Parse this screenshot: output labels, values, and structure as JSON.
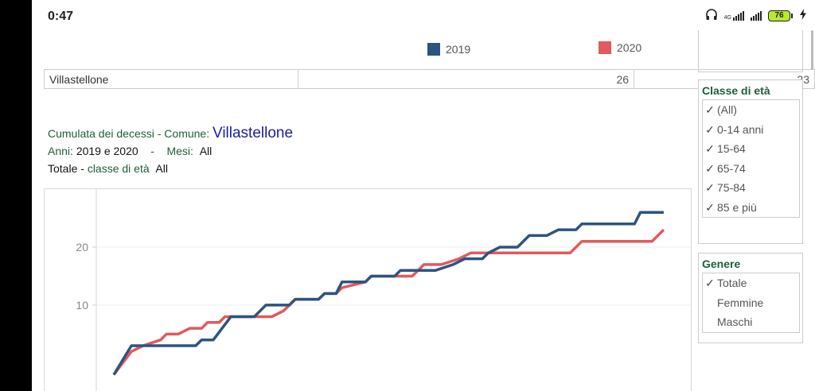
{
  "status_bar": {
    "time": "0:47",
    "network": "4G",
    "battery": "76"
  },
  "legend": [
    {
      "label": "2019",
      "color": "#2d5480"
    },
    {
      "label": "2020",
      "color": "#e05a5e"
    }
  ],
  "summary_table": {
    "rows": [
      {
        "comune": "Villastellone",
        "v2019": "26",
        "v2020": "23"
      }
    ]
  },
  "chart_header": {
    "line1_label": "Cumulata dei decessi -",
    "comune_label": "Comune:",
    "comune_value": "Villastellone",
    "anni_label": "Anni:",
    "anni_value": "2019 e 2020",
    "separator": "-",
    "mesi_label": "Mesi:",
    "mesi_value": "All",
    "totale_label": "Totale",
    "dash": "-",
    "classe_label": "classe di età",
    "classe_value": "All"
  },
  "filters": {
    "age": {
      "title": "Classe di età",
      "check": "✓",
      "items": [
        "(All)",
        "0-14 anni",
        "15-64",
        "65-74",
        "75-84",
        "85 e più"
      ]
    },
    "gender": {
      "title": "Genere",
      "check": "✓",
      "items": [
        "Totale",
        "Femmine",
        "Maschi"
      ],
      "selected": "Totale"
    }
  },
  "chart_data": {
    "type": "line",
    "title": "",
    "xlabel": "",
    "ylabel": "",
    "x_domain": [
      0,
      100
    ],
    "ylim": [
      -7,
      30
    ],
    "y_ticks": [
      10,
      20
    ],
    "grid": true,
    "series": [
      {
        "name": "2019",
        "color": "#2d5480",
        "step": true,
        "points": [
          [
            3,
            -2
          ],
          [
            6,
            3
          ],
          [
            17,
            3
          ],
          [
            18,
            4
          ],
          [
            20,
            4
          ],
          [
            23,
            8
          ],
          [
            27,
            8
          ],
          [
            28,
            9
          ],
          [
            29,
            10
          ],
          [
            33,
            10
          ],
          [
            34,
            11
          ],
          [
            38,
            11
          ],
          [
            39,
            12
          ],
          [
            41,
            12
          ],
          [
            42,
            14
          ],
          [
            46,
            14
          ],
          [
            47,
            15
          ],
          [
            51,
            15
          ],
          [
            52,
            16
          ],
          [
            58,
            16
          ],
          [
            61,
            17
          ],
          [
            63,
            18
          ],
          [
            66,
            18
          ],
          [
            67,
            19
          ],
          [
            69,
            20
          ],
          [
            72,
            20
          ],
          [
            74,
            22
          ],
          [
            77,
            22
          ],
          [
            79,
            23
          ],
          [
            82,
            23
          ],
          [
            83,
            24
          ],
          [
            92,
            24
          ],
          [
            93,
            26
          ],
          [
            97,
            26
          ]
        ]
      },
      {
        "name": "2020",
        "color": "#e05a5e",
        "step": true,
        "points": [
          [
            3,
            -2
          ],
          [
            6,
            2
          ],
          [
            8,
            3
          ],
          [
            11,
            4
          ],
          [
            12,
            5
          ],
          [
            14,
            5
          ],
          [
            16,
            6
          ],
          [
            18,
            6
          ],
          [
            19,
            7
          ],
          [
            21,
            7
          ],
          [
            22,
            8
          ],
          [
            30,
            8
          ],
          [
            32,
            9
          ],
          [
            34,
            11
          ],
          [
            38,
            11
          ],
          [
            39,
            12
          ],
          [
            41,
            12
          ],
          [
            42,
            13
          ],
          [
            46,
            14
          ],
          [
            47,
            15
          ],
          [
            54,
            15
          ],
          [
            55,
            16
          ],
          [
            56,
            17
          ],
          [
            59,
            17
          ],
          [
            62,
            18
          ],
          [
            64,
            19
          ],
          [
            81,
            19
          ],
          [
            83,
            21
          ],
          [
            95,
            21
          ],
          [
            97,
            23
          ]
        ]
      }
    ]
  }
}
